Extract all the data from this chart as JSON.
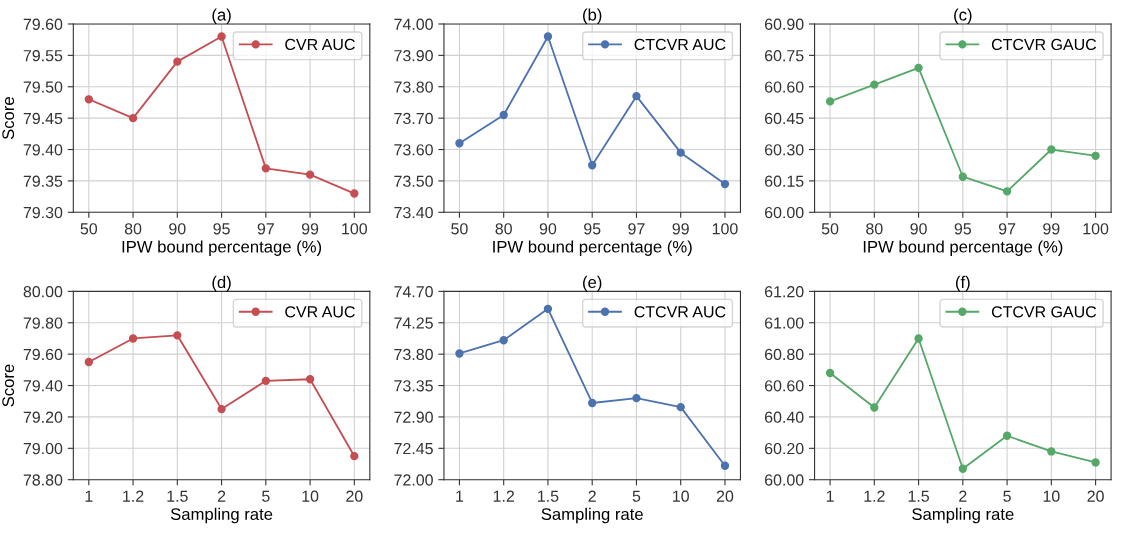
{
  "chart_data": [
    {
      "type": "line",
      "title": "(a)",
      "xlabel": "IPW bound percentage (%)",
      "ylabel": "Score",
      "categories": [
        "50",
        "80",
        "90",
        "95",
        "97",
        "99",
        "100"
      ],
      "series": [
        {
          "name": "CVR AUC",
          "color": "#c44e52",
          "values": [
            79.48,
            79.45,
            79.54,
            79.58,
            79.37,
            79.36,
            79.33
          ]
        }
      ],
      "ylim": [
        79.3,
        79.6
      ],
      "yticks": [
        {
          "value": 79.3,
          "label": "79.30"
        },
        {
          "value": 79.35,
          "label": "79.35"
        },
        {
          "value": 79.4,
          "label": "79.40"
        },
        {
          "value": 79.45,
          "label": "79.45"
        },
        {
          "value": 79.5,
          "label": "79.50"
        },
        {
          "value": 79.55,
          "label": "79.55"
        },
        {
          "value": 79.6,
          "label": "79.60"
        }
      ],
      "grid": true,
      "legend": "top right",
      "marker": "circle",
      "line_style": "solid"
    },
    {
      "type": "line",
      "title": "(b)",
      "xlabel": "IPW bound percentage (%)",
      "categories": [
        "50",
        "80",
        "90",
        "95",
        "97",
        "99",
        "100"
      ],
      "series": [
        {
          "name": "CTCVR AUC",
          "color": "#4c72b0",
          "values": [
            73.62,
            73.71,
            73.96,
            73.55,
            73.77,
            73.59,
            73.49
          ]
        }
      ],
      "ylim": [
        73.4,
        74.0
      ],
      "yticks": [
        {
          "value": 73.4,
          "label": "73.40"
        },
        {
          "value": 73.5,
          "label": "73.50"
        },
        {
          "value": 73.6,
          "label": "73.60"
        },
        {
          "value": 73.7,
          "label": "73.70"
        },
        {
          "value": 73.8,
          "label": "73.80"
        },
        {
          "value": 73.9,
          "label": "73.90"
        },
        {
          "value": 74.0,
          "label": "74.00"
        }
      ],
      "grid": true,
      "legend": "top right",
      "marker": "circle",
      "line_style": "solid"
    },
    {
      "type": "line",
      "title": "(c)",
      "xlabel": "IPW bound percentage (%)",
      "categories": [
        "50",
        "80",
        "90",
        "95",
        "97",
        "99",
        "100"
      ],
      "series": [
        {
          "name": "CTCVR GAUC",
          "color": "#55a868",
          "values": [
            60.53,
            60.61,
            60.69,
            60.17,
            60.1,
            60.3,
            60.27
          ]
        }
      ],
      "ylim": [
        60.0,
        60.9
      ],
      "yticks": [
        {
          "value": 60.0,
          "label": "60.00"
        },
        {
          "value": 60.15,
          "label": "60.15"
        },
        {
          "value": 60.3,
          "label": "60.30"
        },
        {
          "value": 60.45,
          "label": "60.45"
        },
        {
          "value": 60.6,
          "label": "60.60"
        },
        {
          "value": 60.75,
          "label": "60.75"
        },
        {
          "value": 60.9,
          "label": "60.90"
        }
      ],
      "grid": true,
      "legend": "top right",
      "marker": "circle",
      "line_style": "solid"
    },
    {
      "type": "line",
      "title": "(d)",
      "xlabel": "Sampling rate",
      "ylabel": "Score",
      "categories": [
        "1",
        "1.2",
        "1.5",
        "2",
        "5",
        "10",
        "20"
      ],
      "series": [
        {
          "name": "CVR AUC",
          "color": "#c44e52",
          "values": [
            79.55,
            79.7,
            79.72,
            79.25,
            79.43,
            79.44,
            78.95
          ]
        }
      ],
      "ylim": [
        78.8,
        80.0
      ],
      "yticks": [
        {
          "value": 78.8,
          "label": "78.80"
        },
        {
          "value": 79.0,
          "label": "79.00"
        },
        {
          "value": 79.2,
          "label": "79.20"
        },
        {
          "value": 79.4,
          "label": "79.40"
        },
        {
          "value": 79.6,
          "label": "79.60"
        },
        {
          "value": 79.8,
          "label": "79.80"
        },
        {
          "value": 80.0,
          "label": "80.00"
        }
      ],
      "grid": true,
      "legend": "top right",
      "marker": "circle",
      "line_style": "solid"
    },
    {
      "type": "line",
      "title": "(e)",
      "xlabel": "Sampling rate",
      "categories": [
        "1",
        "1.2",
        "1.5",
        "2",
        "5",
        "10",
        "20"
      ],
      "series": [
        {
          "name": "CTCVR AUC",
          "color": "#4c72b0",
          "values": [
            73.81,
            74.0,
            74.45,
            73.1,
            73.17,
            73.04,
            72.2
          ]
        }
      ],
      "ylim": [
        72.0,
        74.7
      ],
      "yticks": [
        {
          "value": 72.0,
          "label": "72.00"
        },
        {
          "value": 72.45,
          "label": "72.45"
        },
        {
          "value": 72.9,
          "label": "72.90"
        },
        {
          "value": 73.35,
          "label": "73.35"
        },
        {
          "value": 73.8,
          "label": "73.80"
        },
        {
          "value": 74.25,
          "label": "74.25"
        },
        {
          "value": 74.7,
          "label": "74.70"
        }
      ],
      "grid": true,
      "legend": "top right",
      "marker": "circle",
      "line_style": "solid"
    },
    {
      "type": "line",
      "title": "(f)",
      "xlabel": "Sampling rate",
      "categories": [
        "1",
        "1.2",
        "1.5",
        "2",
        "5",
        "10",
        "20"
      ],
      "series": [
        {
          "name": "CTCVR GAUC",
          "color": "#55a868",
          "values": [
            60.68,
            60.46,
            60.9,
            60.07,
            60.28,
            60.18,
            60.11
          ]
        }
      ],
      "ylim": [
        60.0,
        61.2
      ],
      "yticks": [
        {
          "value": 60.0,
          "label": "60.00"
        },
        {
          "value": 60.2,
          "label": "60.20"
        },
        {
          "value": 60.4,
          "label": "60.40"
        },
        {
          "value": 60.6,
          "label": "60.60"
        },
        {
          "value": 60.8,
          "label": "60.80"
        },
        {
          "value": 61.0,
          "label": "61.00"
        },
        {
          "value": 61.2,
          "label": "61.20"
        }
      ],
      "grid": true,
      "legend": "top right",
      "marker": "circle",
      "line_style": "solid"
    }
  ]
}
